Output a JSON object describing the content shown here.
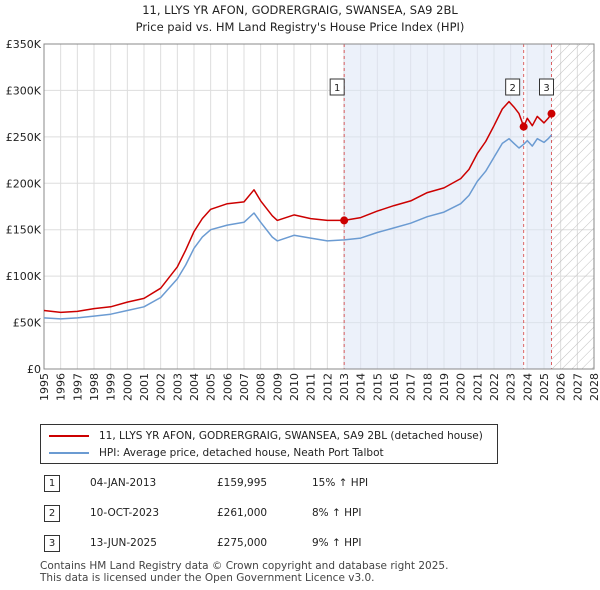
{
  "chart_data": {
    "type": "line",
    "title": "11, LLYS YR AFON, GODRERGRAIG, SWANSEA, SA9 2BL",
    "subtitle": "Price paid vs. HM Land Registry's House Price Index (HPI)",
    "xlim": [
      1995,
      2028
    ],
    "ylim": [
      0,
      350000
    ],
    "x_ticks": [
      "1995",
      "1996",
      "1997",
      "1998",
      "1999",
      "2000",
      "2001",
      "2002",
      "2003",
      "2004",
      "2005",
      "2006",
      "2007",
      "2008",
      "2009",
      "2010",
      "2011",
      "2012",
      "2013",
      "2014",
      "2015",
      "2016",
      "2017",
      "2018",
      "2019",
      "2020",
      "2021",
      "2022",
      "2023",
      "2024",
      "2025",
      "2026",
      "2027",
      "2028"
    ],
    "y_ticks": [
      {
        "value": 0,
        "label": "£0"
      },
      {
        "value": 50000,
        "label": "£50K"
      },
      {
        "value": 100000,
        "label": "£100K"
      },
      {
        "value": 150000,
        "label": "£150K"
      },
      {
        "value": 200000,
        "label": "£200K"
      },
      {
        "value": 250000,
        "label": "£250K"
      },
      {
        "value": 300000,
        "label": "£300K"
      },
      {
        "value": 350000,
        "label": "£350K"
      }
    ],
    "grid": true,
    "hatch_after": 2025.45,
    "series": [
      {
        "name": "11, LLYS YR AFON, GODRERGRAIG, SWANSEA, SA9 2BL (detached house)",
        "color": "#cc0000",
        "x": [
          1995,
          1996,
          1997,
          1998,
          1999,
          2000,
          2001,
          2002,
          2003,
          2003.5,
          2004,
          2004.5,
          2005,
          2006,
          2007,
          2007.6,
          2008,
          2008.7,
          2009,
          2010,
          2011,
          2012,
          2013.01,
          2014,
          2015,
          2016,
          2017,
          2018,
          2019,
          2020,
          2020.5,
          2021,
          2021.5,
          2022,
          2022.5,
          2022.9,
          2023.2,
          2023.5,
          2023.78,
          2024,
          2024.3,
          2024.6,
          2025,
          2025.25,
          2025.45
        ],
        "y": [
          63000,
          61000,
          62000,
          65000,
          67000,
          72000,
          76000,
          87000,
          110000,
          128000,
          148000,
          162000,
          172000,
          178000,
          180000,
          193000,
          181000,
          165000,
          160000,
          166000,
          162000,
          160000,
          159995,
          163000,
          170000,
          176000,
          181000,
          190000,
          195000,
          205000,
          215000,
          232000,
          245000,
          262000,
          280000,
          288000,
          282000,
          275000,
          261000,
          270000,
          262000,
          272000,
          265000,
          270000,
          275000
        ]
      },
      {
        "name": "HPI: Average price, detached house, Neath Port Talbot",
        "color": "#6b9bd2",
        "x": [
          1995,
          1996,
          1997,
          1998,
          1999,
          2000,
          2001,
          2002,
          2003,
          2003.5,
          2004,
          2004.5,
          2005,
          2006,
          2007,
          2007.6,
          2008,
          2008.7,
          2009,
          2010,
          2011,
          2012,
          2013.01,
          2014,
          2015,
          2016,
          2017,
          2018,
          2019,
          2020,
          2020.5,
          2021,
          2021.5,
          2022,
          2022.5,
          2022.9,
          2023.2,
          2023.5,
          2023.78,
          2024,
          2024.3,
          2024.6,
          2025,
          2025.25,
          2025.45
        ],
        "y": [
          55000,
          54000,
          55000,
          57000,
          59000,
          63000,
          67000,
          77000,
          97000,
          112000,
          130000,
          142000,
          150000,
          155000,
          158000,
          168000,
          158000,
          142000,
          138000,
          144000,
          141000,
          138000,
          139000,
          141000,
          147000,
          152000,
          157000,
          164000,
          169000,
          178000,
          187000,
          202000,
          213000,
          228000,
          243000,
          248000,
          243000,
          238000,
          242000,
          246000,
          240000,
          248000,
          244000,
          248000,
          252000
        ]
      }
    ],
    "sales": [
      {
        "label": "1",
        "x": 2013.01,
        "price": 159995
      },
      {
        "label": "2",
        "x": 2023.78,
        "price": 261000
      },
      {
        "label": "3",
        "x": 2025.45,
        "price": 275000
      }
    ]
  },
  "legend": {
    "items": [
      {
        "label": "11, LLYS YR AFON, GODRERGRAIG, SWANSEA, SA9 2BL (detached house)",
        "color": "#cc0000"
      },
      {
        "label": "HPI: Average price, detached house, Neath Port Talbot",
        "color": "#6b9bd2"
      }
    ]
  },
  "sales_table": [
    {
      "num": "1",
      "date": "04-JAN-2013",
      "price": "£159,995",
      "hpi": "15% ↑ HPI"
    },
    {
      "num": "2",
      "date": "10-OCT-2023",
      "price": "£261,000",
      "hpi": "8% ↑ HPI"
    },
    {
      "num": "3",
      "date": "13-JUN-2025",
      "price": "£275,000",
      "hpi": "9% ↑ HPI"
    }
  ],
  "footer": {
    "line1": "Contains HM Land Registry data © Crown copyright and database right 2025.",
    "line2": "This data is licensed under the Open Government Licence v3.0."
  }
}
